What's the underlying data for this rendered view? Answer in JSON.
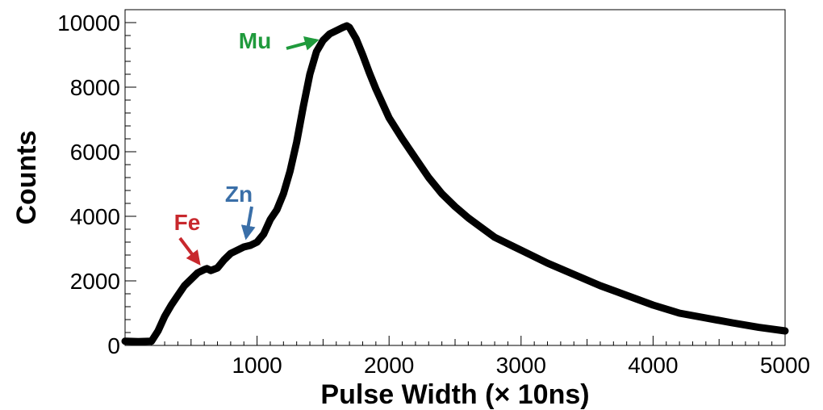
{
  "chart_data": {
    "type": "line",
    "xlabel": "Pulse Width (× 10ns)",
    "ylabel": "Counts",
    "xlim": [
      0,
      5000
    ],
    "ylim": [
      0,
      10400
    ],
    "x_ticks": [
      1000,
      2000,
      3000,
      4000,
      5000
    ],
    "y_ticks": [
      0,
      2000,
      4000,
      6000,
      8000,
      10000
    ],
    "grid": false,
    "legend": "none",
    "line_color": "#000000",
    "series": [
      {
        "x": [
          0,
          100,
          200,
          250,
          300,
          350,
          400,
          450,
          500,
          550,
          600,
          620,
          650,
          700,
          750,
          800,
          850,
          900,
          950,
          1000,
          1050,
          1100,
          1150,
          1200,
          1250,
          1300,
          1350,
          1400,
          1450,
          1500,
          1550,
          1600,
          1650,
          1680,
          1700,
          1750,
          1800,
          1850,
          1900,
          1950,
          2000,
          2100,
          2200,
          2300,
          2400,
          2500,
          2600,
          2700,
          2800,
          2900,
          3000,
          3200,
          3400,
          3600,
          3800,
          4000,
          4200,
          4400,
          4600,
          4800,
          5000
        ],
        "y": [
          130,
          120,
          130,
          450,
          900,
          1250,
          1550,
          1850,
          2050,
          2250,
          2350,
          2380,
          2320,
          2400,
          2650,
          2850,
          2950,
          3050,
          3100,
          3200,
          3450,
          3900,
          4200,
          4700,
          5400,
          6300,
          7400,
          8400,
          9100,
          9450,
          9650,
          9750,
          9850,
          9900,
          9850,
          9500,
          9000,
          8450,
          7950,
          7500,
          7050,
          6400,
          5800,
          5200,
          4700,
          4300,
          3950,
          3650,
          3350,
          3150,
          2950,
          2550,
          2200,
          1850,
          1550,
          1250,
          1000,
          850,
          700,
          560,
          450
        ]
      }
    ],
    "annotations": [
      {
        "text": "Fe",
        "color": "#c8282d",
        "at_x": 620,
        "at_y": 2400
      },
      {
        "text": "Zn",
        "color": "#3a6fa8",
        "at_x": 930,
        "at_y": 3100
      },
      {
        "text": "Mu",
        "color": "#1f9a3c",
        "at_x": 1560,
        "at_y": 9450
      }
    ]
  }
}
